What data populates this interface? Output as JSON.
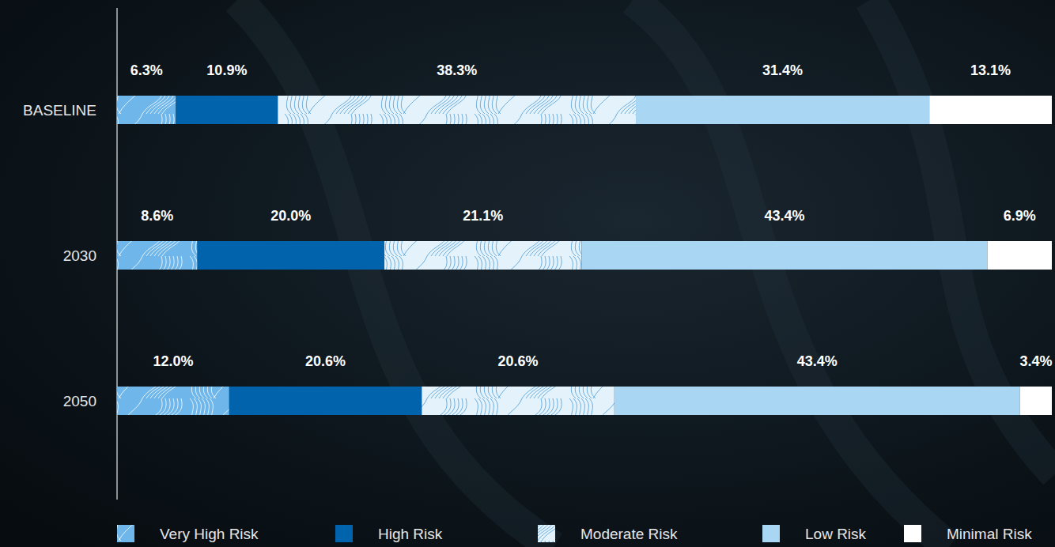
{
  "chart_data": {
    "type": "bar",
    "orientation": "horizontal",
    "stacked": true,
    "data_labels": true,
    "tick_labels": "y",
    "grid": false,
    "legend": "bottom",
    "categories": [
      "BASELINE",
      "2030",
      "2050"
    ],
    "xlim": [
      0,
      100
    ],
    "series": [
      {
        "name": "Very High Risk",
        "color": "#6fb6ea",
        "values": [
          6.3,
          8.6,
          12.0
        ],
        "value_labels": [
          "6.3%",
          "8.6%",
          "12.0%"
        ]
      },
      {
        "name": "High Risk",
        "color": "#0063ab",
        "values": [
          10.9,
          20.0,
          20.6
        ],
        "value_labels": [
          "10.9%",
          "20.0%",
          "20.6%"
        ]
      },
      {
        "name": "Moderate Risk",
        "color": "#e4f2fc",
        "values": [
          38.3,
          21.1,
          20.6
        ],
        "value_labels": [
          "38.3%",
          "21.1%",
          "20.6%"
        ]
      },
      {
        "name": "Low Risk",
        "color": "#a8d6f3",
        "values": [
          31.4,
          43.4,
          43.4
        ],
        "value_labels": [
          "31.4%",
          "43.4%",
          "43.4%"
        ]
      },
      {
        "name": "Minimal Risk",
        "color": "#ffffff",
        "values": [
          13.1,
          6.9,
          3.4
        ],
        "value_labels": [
          "13.1%",
          "6.9%",
          "3.4%"
        ]
      }
    ]
  }
}
